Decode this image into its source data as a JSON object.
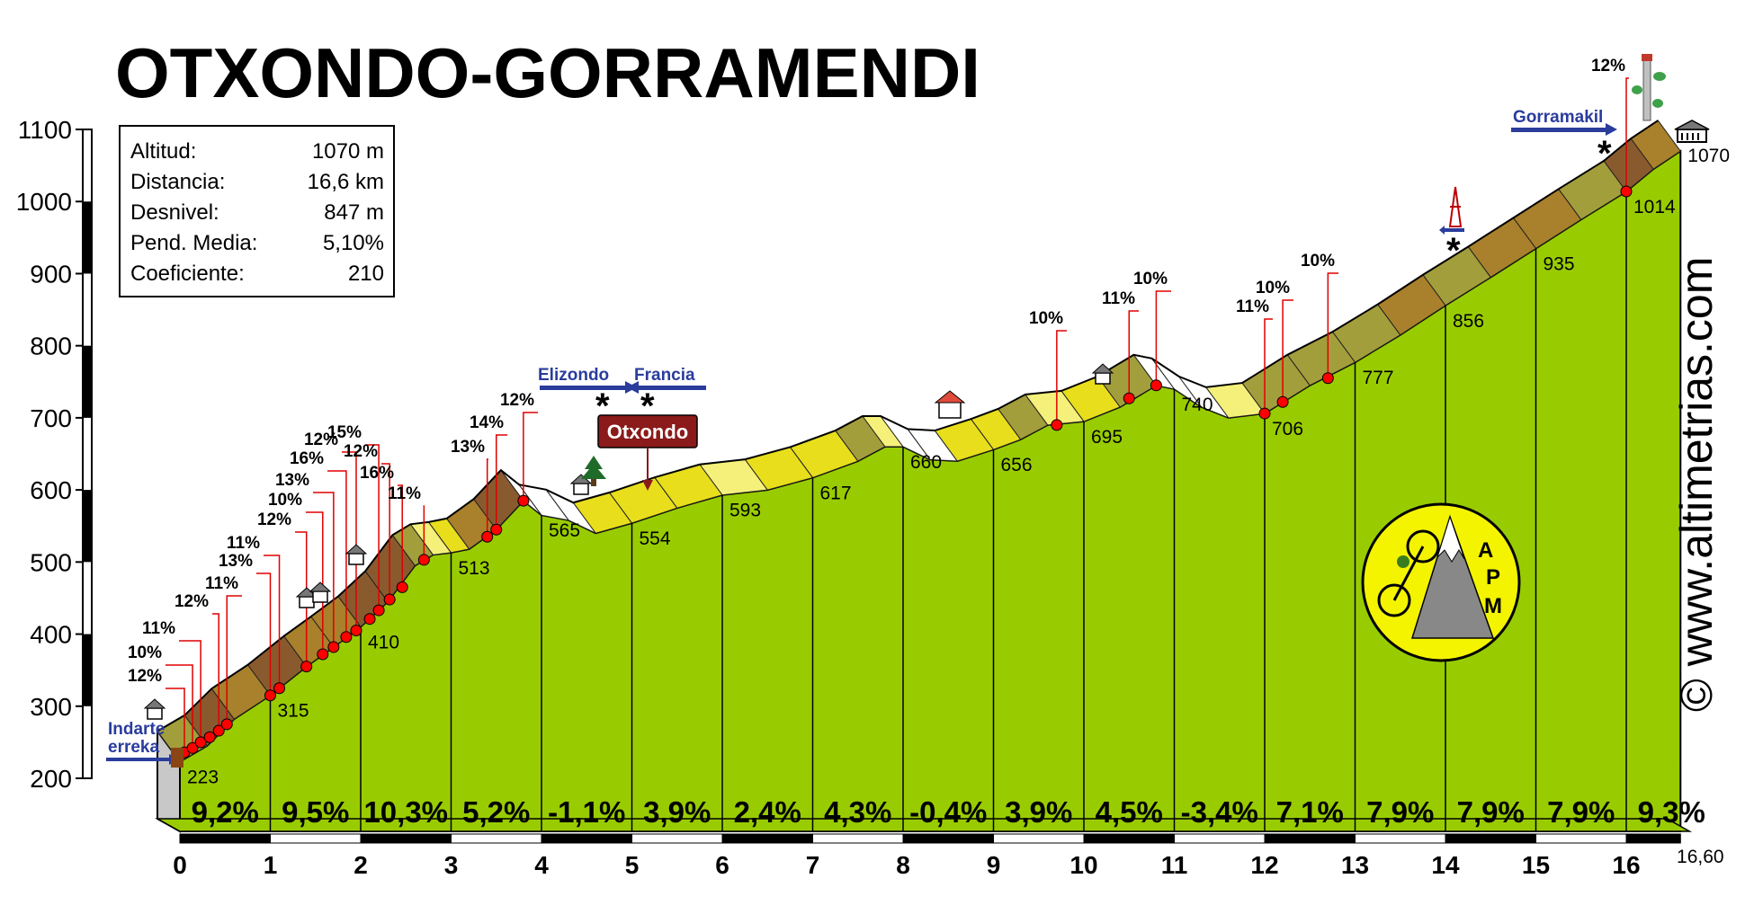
{
  "chart_data": {
    "type": "area",
    "title": "OTXONDO-GORRAMENDI",
    "stats": [
      {
        "label": "Altitud:",
        "value": "1070 m"
      },
      {
        "label": "Distancia:",
        "value": "16,6 km"
      },
      {
        "label": "Desnivel:",
        "value": "847 m"
      },
      {
        "label": "Pend. Media:",
        "value": "5,10%"
      },
      {
        "label": "Coeficiente:",
        "value": "210"
      }
    ],
    "xlim": [
      0,
      16.6
    ],
    "ylim": [
      200,
      1100
    ],
    "x_ticks": [
      "0",
      "1",
      "2",
      "3",
      "4",
      "5",
      "6",
      "7",
      "8",
      "9",
      "10",
      "11",
      "12",
      "13",
      "14",
      "15",
      "16"
    ],
    "x_end_label": "16,60",
    "y_ticks": [
      200,
      300,
      400,
      500,
      600,
      700,
      800,
      900,
      1000,
      1100
    ],
    "km_points": [
      {
        "x": 0,
        "y": 223,
        "label": "223"
      },
      {
        "x": 1,
        "y": 315,
        "label": "315"
      },
      {
        "x": 2,
        "y": 410,
        "label": "410"
      },
      {
        "x": 3,
        "y": 513,
        "label": "513"
      },
      {
        "x": 4,
        "y": 565,
        "label": "565"
      },
      {
        "x": 5,
        "y": 554,
        "label": "554"
      },
      {
        "x": 6,
        "y": 593,
        "label": "593"
      },
      {
        "x": 7,
        "y": 617,
        "label": "617"
      },
      {
        "x": 8,
        "y": 660,
        "label": "660"
      },
      {
        "x": 9,
        "y": 656,
        "label": "656"
      },
      {
        "x": 10,
        "y": 695,
        "label": "695"
      },
      {
        "x": 11,
        "y": 740,
        "label": "740"
      },
      {
        "x": 12,
        "y": 706,
        "label": "706"
      },
      {
        "x": 13,
        "y": 777,
        "label": "777"
      },
      {
        "x": 14,
        "y": 856,
        "label": "856"
      },
      {
        "x": 15,
        "y": 935,
        "label": "935"
      },
      {
        "x": 16,
        "y": 1014,
        "label": "1014"
      },
      {
        "x": 16.6,
        "y": 1070,
        "label": "1070"
      }
    ],
    "profile": [
      [
        0,
        223
      ],
      [
        0.3,
        245
      ],
      [
        0.6,
        282
      ],
      [
        1,
        315
      ],
      [
        1.4,
        355
      ],
      [
        1.7,
        382
      ],
      [
        2,
        410
      ],
      [
        2.3,
        445
      ],
      [
        2.6,
        495
      ],
      [
        2.8,
        510
      ],
      [
        3,
        513
      ],
      [
        3.2,
        518
      ],
      [
        3.5,
        545
      ],
      [
        3.8,
        585
      ],
      [
        4,
        565
      ],
      [
        4.3,
        558
      ],
      [
        4.6,
        540
      ],
      [
        5,
        554
      ],
      [
        5.5,
        575
      ],
      [
        6,
        593
      ],
      [
        6.5,
        600
      ],
      [
        7,
        617
      ],
      [
        7.5,
        640
      ],
      [
        7.8,
        660
      ],
      [
        8,
        660
      ],
      [
        8.3,
        642
      ],
      [
        8.6,
        640
      ],
      [
        9,
        656
      ],
      [
        9.3,
        670
      ],
      [
        9.6,
        690
      ],
      [
        10,
        695
      ],
      [
        10.4,
        715
      ],
      [
        10.8,
        745
      ],
      [
        11,
        740
      ],
      [
        11.3,
        715
      ],
      [
        11.6,
        700
      ],
      [
        12,
        706
      ],
      [
        12.5,
        745
      ],
      [
        13,
        777
      ],
      [
        13.5,
        815
      ],
      [
        14,
        856
      ],
      [
        14.5,
        895
      ],
      [
        15,
        935
      ],
      [
        15.5,
        975
      ],
      [
        16,
        1014
      ],
      [
        16.3,
        1045
      ],
      [
        16.6,
        1070
      ]
    ],
    "segment_grades": [
      "9,2%",
      "9,5%",
      "10,3%",
      "5,2%",
      "-1,1%",
      "3,9%",
      "2,4%",
      "4,3%",
      "-0,4%",
      "3,9%",
      "4,5%",
      "-3,4%",
      "7,1%",
      "7,9%",
      "7,9%",
      "7,9%",
      "9,3%"
    ],
    "slope_markers": [
      {
        "x": 0.05,
        "y": 236,
        "label": "12%"
      },
      {
        "x": 0.14,
        "y": 242,
        "label": "10%"
      },
      {
        "x": 0.23,
        "y": 250,
        "label": "11%"
      },
      {
        "x": 0.33,
        "y": 257,
        "label": ""
      },
      {
        "x": 0.43,
        "y": 266,
        "label": "12%"
      },
      {
        "x": 0.52,
        "y": 275,
        "label": "11%"
      },
      {
        "x": 1.0,
        "y": 315,
        "label": "13%"
      },
      {
        "x": 1.1,
        "y": 325,
        "label": "11%"
      },
      {
        "x": 1.4,
        "y": 355,
        "label": "12%"
      },
      {
        "x": 1.58,
        "y": 372,
        "label": "10%"
      },
      {
        "x": 1.7,
        "y": 382,
        "label": "13%"
      },
      {
        "x": 1.84,
        "y": 396,
        "label": "16%"
      },
      {
        "x": 1.95,
        "y": 405,
        "label": "12%"
      },
      {
        "x": 2.1,
        "y": 421,
        "label": ""
      },
      {
        "x": 2.2,
        "y": 433,
        "label": "15%"
      },
      {
        "x": 2.32,
        "y": 448,
        "label": "12%"
      },
      {
        "x": 2.46,
        "y": 465,
        "label": "16%"
      },
      {
        "x": 2.7,
        "y": 503,
        "label": "11%"
      },
      {
        "x": 3.4,
        "y": 535,
        "label": "13%"
      },
      {
        "x": 3.5,
        "y": 545,
        "label": "14%"
      },
      {
        "x": 3.8,
        "y": 585,
        "label": "12%"
      },
      {
        "x": 9.7,
        "y": 690,
        "label": "10%"
      },
      {
        "x": 10.5,
        "y": 727,
        "label": "11%"
      },
      {
        "x": 10.8,
        "y": 745,
        "label": "10%"
      },
      {
        "x": 12.0,
        "y": 706,
        "label": "11%"
      },
      {
        "x": 12.2,
        "y": 722,
        "label": "10%"
      },
      {
        "x": 12.7,
        "y": 755,
        "label": "10%"
      },
      {
        "x": 16.0,
        "y": 1014,
        "label": "12%"
      }
    ],
    "places": {
      "start_stream": "Indarte erreka",
      "pass_name": "Otxondo",
      "left_arrow": "Elizondo",
      "right_arrow": "Francia",
      "summit_arrow": "Gorramakil"
    },
    "logo_text": "APM",
    "credit": "© www.altimetrias.com",
    "colors": {
      "profile_fill": "#99cc00",
      "road_brown": "#9a6a3a",
      "road_yellow": "#f5e600",
      "road_olive": "#a39e3c",
      "marker_red": "#ff0000",
      "arrow_blue": "#2a3c9c",
      "sign_red": "#8b1a1a"
    }
  }
}
